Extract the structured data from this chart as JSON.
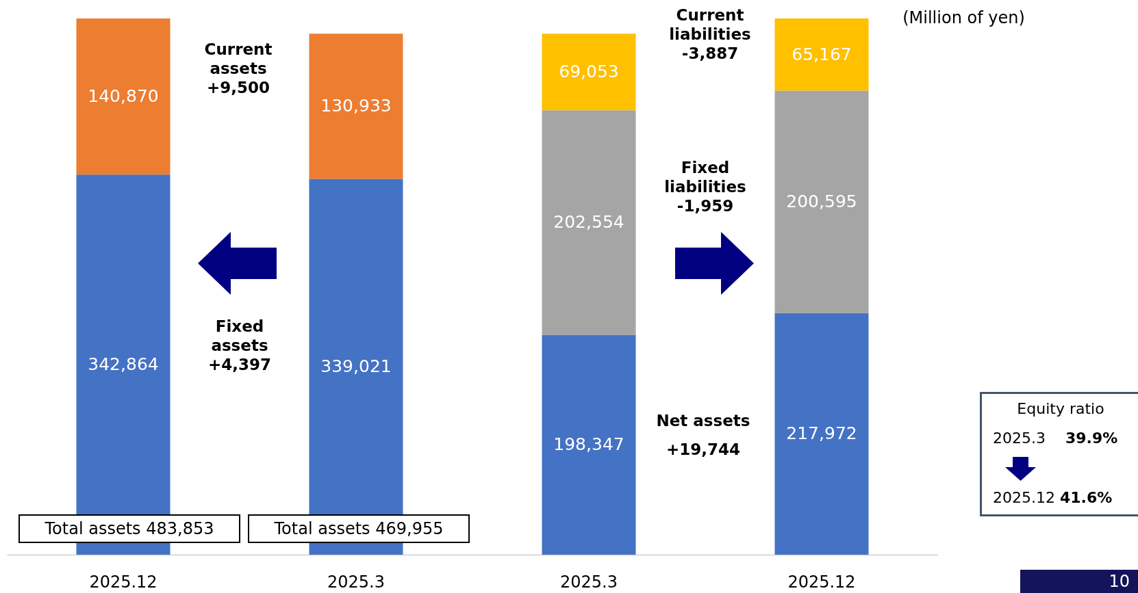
{
  "chart_data": {
    "type": "bar",
    "stacked": true,
    "tick_labels": "x",
    "grid": false,
    "categories": [
      "2025.12",
      "2025.3",
      "2025.3",
      "2025.12"
    ],
    "series": [
      {
        "color": "#4472c4",
        "values": [
          342864,
          339021,
          198347,
          217972
        ],
        "value_labels": [
          "342,864",
          "339,021",
          "198,347",
          "217,972"
        ]
      },
      {
        "color": "#ed7d31",
        "values": [
          140870,
          130933,
          null,
          null
        ],
        "value_labels": [
          "140,870",
          "130,933",
          null,
          null
        ]
      },
      {
        "color": "#a5a5a5",
        "values": [
          null,
          null,
          202554,
          200595
        ],
        "value_labels": [
          null,
          null,
          "202,554",
          "200,595"
        ]
      },
      {
        "color": "#ffc000",
        "values": [
          null,
          null,
          69053,
          65167
        ],
        "value_labels": [
          null,
          null,
          "69,053",
          "65,167"
        ]
      }
    ],
    "annotations": [
      "(Million of yen)",
      "Current assets +9,500",
      "Fixed assets +4,397",
      "Current liabilities -3,887",
      "Fixed liabilities -1,959",
      "Net assets +19,744",
      "Total assets 483,853",
      "Total assets 469,955",
      "Equity ratio",
      "2025.3 39.9%",
      "2025.12 41.6%",
      "10"
    ]
  }
}
